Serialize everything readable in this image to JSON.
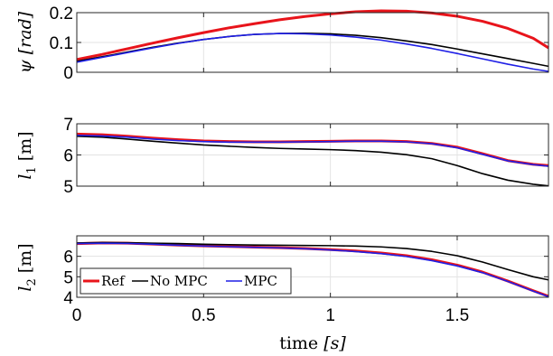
{
  "chart_data": [
    {
      "type": "line",
      "ylabel": "ψ [rad]",
      "xlim": [
        0,
        1.86
      ],
      "ylim": [
        0,
        0.2
      ],
      "yticks": [
        0,
        0.1,
        0.2
      ],
      "ytick_labels": [
        "0",
        "0.1",
        "0.2"
      ],
      "grid": true,
      "series": [
        {
          "name": "Ref",
          "color": "#e8141b",
          "x": [
            0,
            0.1,
            0.2,
            0.3,
            0.4,
            0.5,
            0.6,
            0.7,
            0.8,
            0.9,
            1.0,
            1.1,
            1.2,
            1.3,
            1.4,
            1.5,
            1.6,
            1.7,
            1.8,
            1.86
          ],
          "y": [
            0.043,
            0.06,
            0.079,
            0.098,
            0.116,
            0.133,
            0.149,
            0.163,
            0.176,
            0.187,
            0.196,
            0.203,
            0.206,
            0.205,
            0.199,
            0.188,
            0.171,
            0.147,
            0.114,
            0.082
          ]
        },
        {
          "name": "No MPC",
          "color": "#000000",
          "x": [
            0,
            0.1,
            0.2,
            0.3,
            0.4,
            0.5,
            0.6,
            0.7,
            0.8,
            0.9,
            1.0,
            1.1,
            1.2,
            1.3,
            1.4,
            1.5,
            1.6,
            1.7,
            1.8,
            1.86
          ],
          "y": [
            0.037,
            0.052,
            0.068,
            0.084,
            0.098,
            0.11,
            0.12,
            0.127,
            0.13,
            0.131,
            0.129,
            0.124,
            0.116,
            0.105,
            0.093,
            0.078,
            0.062,
            0.046,
            0.03,
            0.02
          ]
        },
        {
          "name": "MPC",
          "color": "#1f1fe6",
          "x": [
            0,
            0.1,
            0.2,
            0.3,
            0.4,
            0.5,
            0.6,
            0.7,
            0.8,
            0.9,
            1.0,
            1.1,
            1.2,
            1.3,
            1.4,
            1.5,
            1.6,
            1.7,
            1.8,
            1.86
          ],
          "y": [
            0.034,
            0.05,
            0.066,
            0.082,
            0.097,
            0.11,
            0.12,
            0.127,
            0.13,
            0.129,
            0.125,
            0.118,
            0.108,
            0.095,
            0.08,
            0.063,
            0.045,
            0.027,
            0.011,
            0.003
          ]
        }
      ]
    },
    {
      "type": "line",
      "ylabel": "l1 [m]",
      "ylabel_main": "l",
      "ylabel_sub": "1",
      "ylabel_unit": " [m]",
      "xlim": [
        0,
        1.86
      ],
      "ylim": [
        5,
        7
      ],
      "yticks": [
        5,
        6,
        7
      ],
      "ytick_labels": [
        "5",
        "6",
        "7"
      ],
      "grid": true,
      "series": [
        {
          "name": "Ref",
          "color": "#e8141b",
          "x": [
            0,
            0.1,
            0.2,
            0.3,
            0.4,
            0.5,
            0.6,
            0.7,
            0.8,
            0.9,
            1.0,
            1.1,
            1.2,
            1.3,
            1.4,
            1.5,
            1.6,
            1.7,
            1.8,
            1.86
          ],
          "y": [
            6.67,
            6.65,
            6.6,
            6.54,
            6.49,
            6.45,
            6.43,
            6.42,
            6.42,
            6.43,
            6.44,
            6.45,
            6.45,
            6.43,
            6.37,
            6.25,
            6.04,
            5.82,
            5.7,
            5.66
          ]
        },
        {
          "name": "No MPC",
          "color": "#000000",
          "x": [
            0,
            0.1,
            0.2,
            0.3,
            0.4,
            0.5,
            0.6,
            0.7,
            0.8,
            0.9,
            1.0,
            1.1,
            1.2,
            1.3,
            1.4,
            1.5,
            1.6,
            1.7,
            1.8,
            1.86
          ],
          "y": [
            6.6,
            6.57,
            6.51,
            6.44,
            6.38,
            6.32,
            6.28,
            6.24,
            6.21,
            6.19,
            6.17,
            6.14,
            6.09,
            6.01,
            5.88,
            5.66,
            5.4,
            5.19,
            5.06,
            5.01
          ]
        },
        {
          "name": "MPC",
          "color": "#1f1fe6",
          "x": [
            0,
            0.1,
            0.2,
            0.3,
            0.4,
            0.5,
            0.6,
            0.7,
            0.8,
            0.9,
            1.0,
            1.1,
            1.2,
            1.3,
            1.4,
            1.5,
            1.6,
            1.7,
            1.8,
            1.86
          ],
          "y": [
            6.63,
            6.61,
            6.57,
            6.51,
            6.46,
            6.43,
            6.41,
            6.41,
            6.41,
            6.42,
            6.43,
            6.44,
            6.44,
            6.42,
            6.36,
            6.23,
            6.02,
            5.81,
            5.69,
            5.64
          ]
        }
      ]
    },
    {
      "type": "line",
      "ylabel": "l2 [m]",
      "ylabel_main": "l",
      "ylabel_sub": "2",
      "ylabel_unit": " [m]",
      "xlabel": "time [s]",
      "xlabel_text": "time ",
      "xlabel_unit": "[s]",
      "xlim": [
        0,
        1.86
      ],
      "xticks": [
        0,
        0.5,
        1,
        1.5
      ],
      "xtick_labels": [
        "0",
        "0.5",
        "1",
        "1.5"
      ],
      "ylim": [
        4,
        7
      ],
      "yticks": [
        4,
        5,
        6
      ],
      "ytick_labels": [
        "4",
        "5",
        "6"
      ],
      "grid": true,
      "legend": {
        "placement": "bottom-left",
        "entries": [
          "Ref",
          "No MPC",
          "MPC"
        ]
      },
      "series": [
        {
          "name": "Ref",
          "color": "#e8141b",
          "x": [
            0,
            0.1,
            0.2,
            0.3,
            0.4,
            0.5,
            0.6,
            0.7,
            0.8,
            0.9,
            1.0,
            1.1,
            1.2,
            1.3,
            1.4,
            1.5,
            1.6,
            1.7,
            1.8,
            1.86
          ],
          "y": [
            6.62,
            6.65,
            6.64,
            6.6,
            6.55,
            6.51,
            6.48,
            6.45,
            6.42,
            6.38,
            6.33,
            6.26,
            6.16,
            6.03,
            5.83,
            5.57,
            5.23,
            4.79,
            4.32,
            4.05
          ]
        },
        {
          "name": "No MPC",
          "color": "#000000",
          "x": [
            0,
            0.1,
            0.2,
            0.3,
            0.4,
            0.5,
            0.6,
            0.7,
            0.8,
            0.9,
            1.0,
            1.1,
            1.2,
            1.3,
            1.4,
            1.5,
            1.6,
            1.7,
            1.8,
            1.86
          ],
          "y": [
            6.65,
            6.67,
            6.66,
            6.64,
            6.62,
            6.59,
            6.57,
            6.55,
            6.54,
            6.53,
            6.52,
            6.5,
            6.46,
            6.38,
            6.24,
            6.03,
            5.72,
            5.35,
            5.0,
            4.85
          ]
        },
        {
          "name": "MPC",
          "color": "#1f1fe6",
          "x": [
            0,
            0.1,
            0.2,
            0.3,
            0.4,
            0.5,
            0.6,
            0.7,
            0.8,
            0.9,
            1.0,
            1.1,
            1.2,
            1.3,
            1.4,
            1.5,
            1.6,
            1.7,
            1.8,
            1.86
          ],
          "y": [
            6.62,
            6.64,
            6.63,
            6.59,
            6.54,
            6.5,
            6.47,
            6.44,
            6.41,
            6.37,
            6.31,
            6.23,
            6.13,
            5.99,
            5.79,
            5.53,
            5.2,
            4.77,
            4.3,
            4.03
          ]
        }
      ]
    }
  ]
}
